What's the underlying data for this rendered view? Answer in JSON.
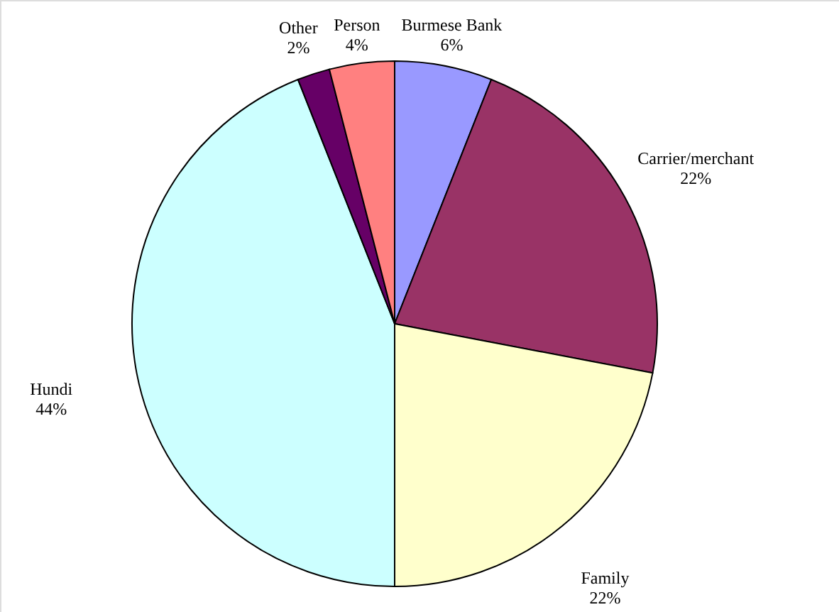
{
  "chart_data": {
    "type": "pie",
    "categories": [
      "Burmese Bank",
      "Carrier/merchant",
      "Family",
      "Hundi",
      "Other",
      "Person"
    ],
    "values": [
      6,
      22,
      22,
      44,
      2,
      4
    ],
    "value_labels": [
      "6%",
      "22%",
      "22%",
      "44%",
      "2%",
      "4%"
    ],
    "colors": [
      "#9999ff",
      "#993366",
      "#ffffcc",
      "#ccffff",
      "#660066",
      "#ff8080"
    ]
  }
}
